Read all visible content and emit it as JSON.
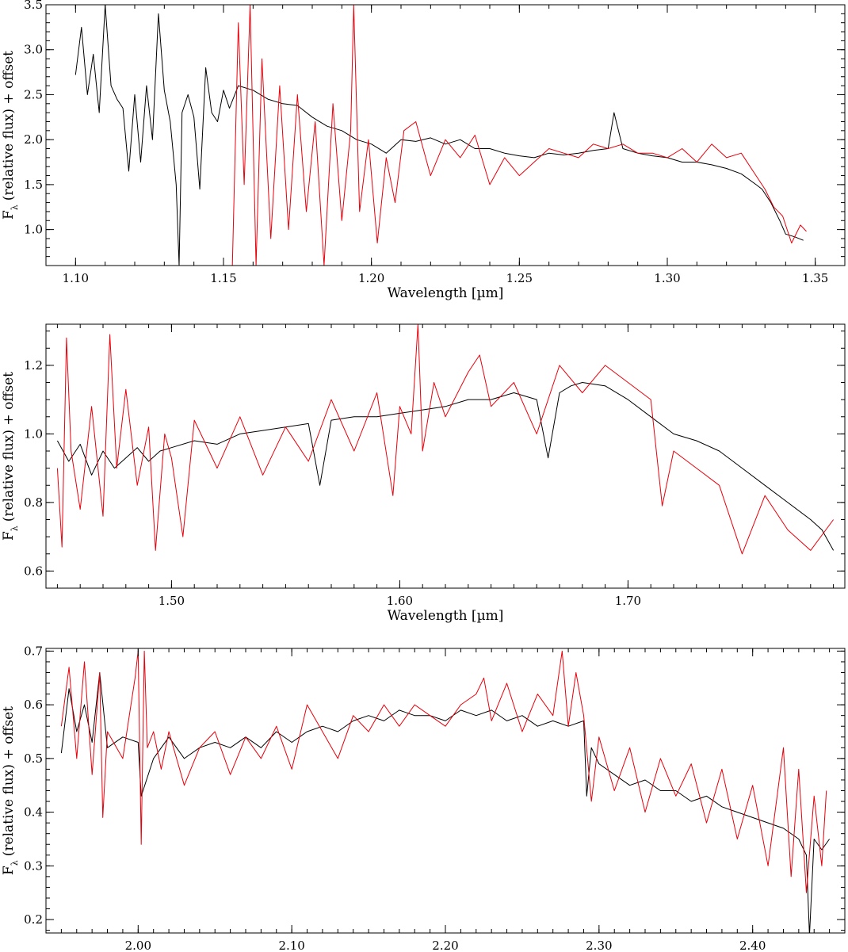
{
  "chart_data": [
    {
      "type": "line",
      "xlabel": "Wavelength [µm]",
      "ylabel_main": "F",
      "ylabel_sub": "λ",
      "ylabel_rest": "(relative flux) + offset",
      "xlim": [
        1.09,
        1.36
      ],
      "ylim": [
        0.6,
        3.5
      ],
      "x_ticks": [
        1.1,
        1.15,
        1.2,
        1.25,
        1.3,
        1.35
      ],
      "x_tick_labels": [
        "1.10",
        "1.15",
        "1.20",
        "1.25",
        "1.30",
        "1.35"
      ],
      "x_minor_step": 0.01,
      "y_ticks": [
        1.0,
        1.5,
        2.0,
        2.5,
        3.0,
        3.5
      ],
      "y_tick_labels": [
        "1.0",
        "1.5",
        "2.0",
        "2.5",
        "3.0",
        "3.5"
      ],
      "y_minor_step": 0.1,
      "series": [
        {
          "color": "#000000",
          "x": [
            1.1,
            1.102,
            1.104,
            1.106,
            1.108,
            1.11,
            1.112,
            1.114,
            1.116,
            1.118,
            1.12,
            1.122,
            1.124,
            1.126,
            1.128,
            1.13,
            1.132,
            1.134,
            1.135,
            1.136,
            1.138,
            1.14,
            1.142,
            1.144,
            1.146,
            1.148,
            1.15,
            1.152,
            1.155,
            1.16,
            1.165,
            1.17,
            1.175,
            1.18,
            1.185,
            1.19,
            1.195,
            1.2,
            1.205,
            1.21,
            1.215,
            1.22,
            1.225,
            1.23,
            1.235,
            1.24,
            1.245,
            1.25,
            1.255,
            1.26,
            1.265,
            1.27,
            1.275,
            1.28,
            1.282,
            1.285,
            1.29,
            1.295,
            1.3,
            1.305,
            1.31,
            1.315,
            1.32,
            1.325,
            1.33,
            1.332,
            1.335,
            1.338,
            1.34,
            1.343,
            1.346
          ],
          "y": [
            2.72,
            3.25,
            2.5,
            2.95,
            2.3,
            3.5,
            2.6,
            2.45,
            2.35,
            1.65,
            2.5,
            1.75,
            2.6,
            2.0,
            3.4,
            2.55,
            2.2,
            1.5,
            0.6,
            2.3,
            2.5,
            2.25,
            1.45,
            2.8,
            2.3,
            2.2,
            2.55,
            2.35,
            2.6,
            2.55,
            2.45,
            2.4,
            2.38,
            2.25,
            2.15,
            2.1,
            2.0,
            1.95,
            1.85,
            2.0,
            1.98,
            2.02,
            1.95,
            2.0,
            1.9,
            1.9,
            1.85,
            1.82,
            1.8,
            1.85,
            1.83,
            1.85,
            1.88,
            1.9,
            2.3,
            1.9,
            1.85,
            1.82,
            1.8,
            1.75,
            1.75,
            1.72,
            1.68,
            1.62,
            1.5,
            1.45,
            1.3,
            1.1,
            0.95,
            0.92,
            0.88
          ]
        },
        {
          "color": "#e8000b",
          "x": [
            1.153,
            1.155,
            1.157,
            1.159,
            1.161,
            1.163,
            1.166,
            1.169,
            1.172,
            1.175,
            1.178,
            1.181,
            1.184,
            1.187,
            1.19,
            1.193,
            1.194,
            1.196,
            1.199,
            1.202,
            1.205,
            1.208,
            1.211,
            1.215,
            1.22,
            1.225,
            1.23,
            1.235,
            1.24,
            1.245,
            1.25,
            1.255,
            1.26,
            1.265,
            1.27,
            1.275,
            1.28,
            1.285,
            1.29,
            1.295,
            1.3,
            1.305,
            1.31,
            1.315,
            1.32,
            1.325,
            1.33,
            1.333,
            1.336,
            1.339,
            1.342,
            1.345,
            1.347
          ],
          "y": [
            0.6,
            3.3,
            1.5,
            3.5,
            0.6,
            2.9,
            0.9,
            2.6,
            1.0,
            2.5,
            1.2,
            2.2,
            0.6,
            2.4,
            1.1,
            2.1,
            3.5,
            1.2,
            2.0,
            0.85,
            1.8,
            1.3,
            2.1,
            2.2,
            1.6,
            2.0,
            1.8,
            2.05,
            1.5,
            1.8,
            1.6,
            1.75,
            1.9,
            1.85,
            1.8,
            1.95,
            1.9,
            1.95,
            1.85,
            1.85,
            1.8,
            1.9,
            1.75,
            1.95,
            1.8,
            1.85,
            1.6,
            1.45,
            1.25,
            1.15,
            0.85,
            1.05,
            0.98
          ]
        }
      ]
    },
    {
      "type": "line",
      "xlabel": "Wavelength [µm]",
      "ylabel_main": "F",
      "ylabel_sub": "λ",
      "ylabel_rest": "(relative flux) + offset",
      "xlim": [
        1.445,
        1.795
      ],
      "ylim": [
        0.55,
        1.32
      ],
      "x_ticks": [
        1.5,
        1.6,
        1.7
      ],
      "x_tick_labels": [
        "1.50",
        "1.60",
        "1.70"
      ],
      "x_minor_step": 0.01,
      "y_ticks": [
        0.6,
        0.8,
        1.0,
        1.2
      ],
      "y_tick_labels": [
        "0.6",
        "0.8",
        "1.0",
        "1.2"
      ],
      "y_minor_step": 0.05,
      "series": [
        {
          "color": "#000000",
          "x": [
            1.45,
            1.455,
            1.46,
            1.465,
            1.47,
            1.475,
            1.48,
            1.485,
            1.49,
            1.495,
            1.5,
            1.51,
            1.52,
            1.53,
            1.54,
            1.55,
            1.56,
            1.565,
            1.57,
            1.58,
            1.59,
            1.6,
            1.61,
            1.62,
            1.63,
            1.64,
            1.65,
            1.66,
            1.665,
            1.67,
            1.675,
            1.68,
            1.69,
            1.7,
            1.71,
            1.72,
            1.73,
            1.74,
            1.75,
            1.76,
            1.77,
            1.78,
            1.785,
            1.79
          ],
          "y": [
            0.98,
            0.92,
            0.97,
            0.88,
            0.95,
            0.9,
            0.93,
            0.96,
            0.92,
            0.95,
            0.96,
            0.98,
            0.97,
            1.0,
            1.01,
            1.02,
            1.03,
            0.85,
            1.04,
            1.05,
            1.05,
            1.06,
            1.07,
            1.08,
            1.1,
            1.1,
            1.12,
            1.1,
            0.93,
            1.12,
            1.14,
            1.15,
            1.14,
            1.1,
            1.05,
            1.0,
            0.98,
            0.95,
            0.9,
            0.85,
            0.8,
            0.75,
            0.72,
            0.66
          ]
        },
        {
          "color": "#e8000b",
          "x": [
            1.45,
            1.452,
            1.454,
            1.456,
            1.46,
            1.465,
            1.47,
            1.473,
            1.476,
            1.48,
            1.485,
            1.49,
            1.493,
            1.497,
            1.5,
            1.505,
            1.51,
            1.52,
            1.53,
            1.54,
            1.55,
            1.56,
            1.57,
            1.58,
            1.59,
            1.597,
            1.6,
            1.605,
            1.608,
            1.61,
            1.615,
            1.62,
            1.63,
            1.635,
            1.64,
            1.65,
            1.66,
            1.67,
            1.68,
            1.69,
            1.7,
            1.71,
            1.715,
            1.72,
            1.73,
            1.74,
            1.75,
            1.76,
            1.77,
            1.78,
            1.79
          ],
          "y": [
            0.9,
            0.67,
            1.28,
            0.95,
            0.78,
            1.08,
            0.76,
            1.29,
            0.9,
            1.13,
            0.85,
            1.02,
            0.66,
            1.0,
            0.93,
            0.7,
            1.04,
            0.9,
            1.05,
            0.88,
            1.02,
            0.92,
            1.1,
            0.95,
            1.12,
            0.82,
            1.08,
            1.0,
            1.32,
            0.95,
            1.15,
            1.05,
            1.18,
            1.23,
            1.08,
            1.15,
            1.0,
            1.2,
            1.12,
            1.2,
            1.15,
            1.1,
            0.79,
            0.95,
            0.9,
            0.85,
            0.65,
            0.82,
            0.72,
            0.66,
            0.75
          ]
        }
      ]
    },
    {
      "type": "line",
      "xlabel": "Wavelength [µm]",
      "ylabel_main": "F",
      "ylabel_sub": "λ",
      "ylabel_rest": "(relative flux) + offset",
      "xlim": [
        1.94,
        2.46
      ],
      "ylim": [
        0.175,
        0.705
      ],
      "x_ticks": [
        2.0,
        2.1,
        2.2,
        2.3,
        2.4
      ],
      "x_tick_labels": [
        "2.00",
        "2.10",
        "2.20",
        "2.30",
        "2.40"
      ],
      "x_minor_step": 0.01,
      "y_ticks": [
        0.2,
        0.3,
        0.4,
        0.5,
        0.6,
        0.7
      ],
      "y_tick_labels": [
        "0.2",
        "0.3",
        "0.4",
        "0.5",
        "0.6",
        "0.7"
      ],
      "y_minor_step": 0.02,
      "series": [
        {
          "color": "#000000",
          "x": [
            1.95,
            1.955,
            1.96,
            1.965,
            1.97,
            1.975,
            1.98,
            1.99,
            2.0,
            2.002,
            2.01,
            2.02,
            2.03,
            2.04,
            2.05,
            2.06,
            2.07,
            2.08,
            2.09,
            2.1,
            2.11,
            2.12,
            2.13,
            2.14,
            2.15,
            2.16,
            2.17,
            2.18,
            2.19,
            2.2,
            2.21,
            2.22,
            2.23,
            2.24,
            2.25,
            2.26,
            2.27,
            2.28,
            2.29,
            2.292,
            2.295,
            2.3,
            2.31,
            2.32,
            2.33,
            2.34,
            2.35,
            2.36,
            2.37,
            2.38,
            2.39,
            2.4,
            2.41,
            2.42,
            2.43,
            2.435,
            2.437,
            2.44,
            2.445,
            2.45
          ],
          "y": [
            0.51,
            0.63,
            0.55,
            0.6,
            0.53,
            0.66,
            0.52,
            0.54,
            0.53,
            0.43,
            0.5,
            0.54,
            0.5,
            0.52,
            0.53,
            0.52,
            0.54,
            0.52,
            0.55,
            0.53,
            0.55,
            0.56,
            0.55,
            0.57,
            0.58,
            0.57,
            0.59,
            0.58,
            0.58,
            0.57,
            0.59,
            0.58,
            0.59,
            0.57,
            0.58,
            0.56,
            0.57,
            0.56,
            0.57,
            0.43,
            0.52,
            0.49,
            0.47,
            0.45,
            0.46,
            0.44,
            0.44,
            0.42,
            0.43,
            0.41,
            0.4,
            0.39,
            0.38,
            0.37,
            0.35,
            0.32,
            0.17,
            0.35,
            0.33,
            0.35
          ]
        },
        {
          "color": "#e8000b",
          "x": [
            1.95,
            1.955,
            1.96,
            1.965,
            1.97,
            1.975,
            1.977,
            1.98,
            1.99,
            1.998,
            2.0,
            2.002,
            2.004,
            2.006,
            2.01,
            2.015,
            2.02,
            2.03,
            2.04,
            2.05,
            2.06,
            2.07,
            2.08,
            2.09,
            2.1,
            2.11,
            2.12,
            2.13,
            2.14,
            2.15,
            2.16,
            2.17,
            2.18,
            2.19,
            2.2,
            2.21,
            2.22,
            2.225,
            2.23,
            2.24,
            2.25,
            2.26,
            2.27,
            2.276,
            2.28,
            2.285,
            2.29,
            2.295,
            2.3,
            2.31,
            2.32,
            2.33,
            2.34,
            2.35,
            2.36,
            2.37,
            2.38,
            2.39,
            2.4,
            2.41,
            2.42,
            2.425,
            2.43,
            2.435,
            2.44,
            2.445,
            2.448
          ],
          "y": [
            0.56,
            0.67,
            0.5,
            0.68,
            0.47,
            0.66,
            0.39,
            0.55,
            0.5,
            0.65,
            0.7,
            0.34,
            0.7,
            0.52,
            0.55,
            0.48,
            0.55,
            0.45,
            0.52,
            0.55,
            0.47,
            0.54,
            0.5,
            0.56,
            0.48,
            0.6,
            0.55,
            0.5,
            0.58,
            0.55,
            0.6,
            0.56,
            0.6,
            0.58,
            0.56,
            0.6,
            0.62,
            0.65,
            0.57,
            0.64,
            0.55,
            0.62,
            0.58,
            0.7,
            0.56,
            0.66,
            0.58,
            0.42,
            0.54,
            0.44,
            0.52,
            0.4,
            0.5,
            0.43,
            0.49,
            0.38,
            0.48,
            0.35,
            0.45,
            0.3,
            0.52,
            0.28,
            0.48,
            0.25,
            0.43,
            0.3,
            0.44
          ]
        }
      ]
    }
  ]
}
